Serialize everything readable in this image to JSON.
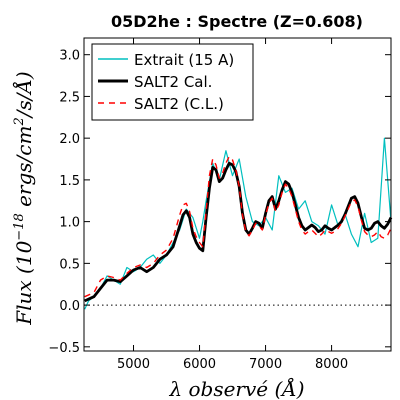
{
  "chart_data": {
    "type": "line",
    "title": "05D2he : Spectre (Z=0.608)",
    "xlabel": "λ observé (Å)",
    "ylabel": "Flux (10^-18 ergs/cm^2/s/Å)",
    "ylabel_parts": {
      "prefix": "Flux (10",
      "exponent": "−18",
      "units": " ergs/cm",
      "units_exp": "2",
      "suffix": "/s/Å)"
    },
    "xlim": [
      4250,
      8900
    ],
    "ylim": [
      -0.55,
      3.2
    ],
    "xticks": [
      5000,
      6000,
      7000,
      8000
    ],
    "xtick_labels": [
      "5000",
      "6000",
      "7000",
      "8000"
    ],
    "yticks": [
      -0.5,
      0.0,
      0.5,
      1.0,
      1.5,
      2.0,
      2.5,
      3.0
    ],
    "ytick_labels": [
      "−0.5",
      "0.0",
      "0.5",
      "1.0",
      "1.5",
      "2.0",
      "2.5",
      "3.0"
    ],
    "zero_line": true,
    "grid": false,
    "legend_position": "top-left",
    "series": [
      {
        "name": "Extrait (15 A)",
        "color": "#00bfbf",
        "style": "solid",
        "x": [
          4260,
          4320,
          4400,
          4500,
          4600,
          4700,
          4800,
          4900,
          5000,
          5100,
          5200,
          5300,
          5400,
          5500,
          5600,
          5700,
          5800,
          5900,
          6000,
          6050,
          6100,
          6200,
          6300,
          6400,
          6500,
          6600,
          6700,
          6800,
          6900,
          7000,
          7100,
          7200,
          7300,
          7400,
          7500,
          7600,
          7700,
          7800,
          7900,
          8000,
          8100,
          8200,
          8300,
          8400,
          8500,
          8600,
          8700,
          8800,
          8900
        ],
        "y": [
          -0.05,
          0.05,
          0.1,
          0.2,
          0.35,
          0.3,
          0.25,
          0.45,
          0.4,
          0.45,
          0.55,
          0.6,
          0.5,
          0.6,
          0.75,
          0.9,
          1.15,
          1.05,
          0.8,
          1.0,
          1.25,
          1.7,
          1.5,
          1.85,
          1.55,
          1.75,
          1.3,
          1.0,
          0.95,
          1.05,
          0.9,
          1.55,
          1.35,
          1.4,
          1.15,
          1.25,
          1.0,
          0.95,
          0.85,
          1.2,
          0.95,
          1.1,
          0.85,
          0.7,
          1.1,
          0.75,
          0.8,
          2.0,
          1.0
        ]
      },
      {
        "name": "SALT2 Cal.",
        "color": "#000000",
        "style": "solid-thick",
        "x": [
          4260,
          4400,
          4500,
          4600,
          4700,
          4800,
          4900,
          5000,
          5100,
          5200,
          5300,
          5400,
          5500,
          5600,
          5700,
          5750,
          5800,
          5850,
          5900,
          5950,
          6000,
          6050,
          6100,
          6150,
          6200,
          6250,
          6300,
          6350,
          6400,
          6450,
          6500,
          6550,
          6600,
          6650,
          6700,
          6750,
          6800,
          6850,
          6900,
          6950,
          7000,
          7050,
          7100,
          7150,
          7200,
          7250,
          7300,
          7350,
          7400,
          7450,
          7500,
          7550,
          7600,
          7650,
          7700,
          7750,
          7800,
          7850,
          7900,
          7950,
          8000,
          8050,
          8100,
          8150,
          8200,
          8250,
          8300,
          8350,
          8400,
          8450,
          8500,
          8550,
          8600,
          8650,
          8700,
          8750,
          8800,
          8850,
          8900
        ],
        "y": [
          0.05,
          0.1,
          0.2,
          0.3,
          0.3,
          0.28,
          0.35,
          0.42,
          0.45,
          0.4,
          0.45,
          0.55,
          0.6,
          0.7,
          0.95,
          1.08,
          1.13,
          1.05,
          0.85,
          0.75,
          0.68,
          0.65,
          1.05,
          1.4,
          1.65,
          1.62,
          1.48,
          1.52,
          1.62,
          1.7,
          1.68,
          1.6,
          1.42,
          1.1,
          0.9,
          0.85,
          0.92,
          1.0,
          0.98,
          0.92,
          1.1,
          1.25,
          1.3,
          1.15,
          1.25,
          1.38,
          1.48,
          1.45,
          1.35,
          1.2,
          1.05,
          0.95,
          0.9,
          0.93,
          0.96,
          0.93,
          0.88,
          0.9,
          0.95,
          0.92,
          0.9,
          0.93,
          0.96,
          1.0,
          1.08,
          1.18,
          1.28,
          1.3,
          1.22,
          1.06,
          0.92,
          0.9,
          0.92,
          0.98,
          1.0,
          0.95,
          0.92,
          0.97,
          1.05
        ]
      },
      {
        "name": "SALT2 (C.L.)",
        "color": "#ff0000",
        "style": "dashed",
        "x": [
          4260,
          4400,
          4500,
          4600,
          4700,
          4800,
          4900,
          5000,
          5100,
          5200,
          5300,
          5400,
          5500,
          5600,
          5700,
          5750,
          5800,
          5850,
          5900,
          5950,
          6000,
          6050,
          6100,
          6150,
          6200,
          6250,
          6300,
          6350,
          6400,
          6450,
          6500,
          6550,
          6600,
          6650,
          6700,
          6750,
          6800,
          6850,
          6900,
          6950,
          7000,
          7050,
          7100,
          7150,
          7200,
          7250,
          7300,
          7350,
          7400,
          7450,
          7500,
          7550,
          7600,
          7650,
          7700,
          7750,
          7800,
          7850,
          7900,
          7950,
          8000,
          8050,
          8100,
          8150,
          8200,
          8250,
          8300,
          8350,
          8400,
          8450,
          8500,
          8550,
          8600,
          8650,
          8700,
          8750,
          8800,
          8850,
          8900
        ],
        "y": [
          0.1,
          0.15,
          0.3,
          0.35,
          0.33,
          0.3,
          0.38,
          0.45,
          0.48,
          0.45,
          0.5,
          0.6,
          0.66,
          0.8,
          1.08,
          1.2,
          1.22,
          1.12,
          0.92,
          0.82,
          0.75,
          0.7,
          1.12,
          1.55,
          1.75,
          1.68,
          1.52,
          1.58,
          1.7,
          1.78,
          1.74,
          1.62,
          1.42,
          1.08,
          0.88,
          0.83,
          0.9,
          0.98,
          0.95,
          0.9,
          1.08,
          1.22,
          1.28,
          1.12,
          1.2,
          1.35,
          1.45,
          1.4,
          1.3,
          1.15,
          1.0,
          0.9,
          0.85,
          0.88,
          0.9,
          0.86,
          0.82,
          0.85,
          0.9,
          0.88,
          0.86,
          0.88,
          0.92,
          0.98,
          1.06,
          1.15,
          1.24,
          1.26,
          1.18,
          1.02,
          0.88,
          0.84,
          0.82,
          0.84,
          0.88,
          0.82,
          0.8,
          0.84,
          0.92
        ]
      }
    ]
  }
}
